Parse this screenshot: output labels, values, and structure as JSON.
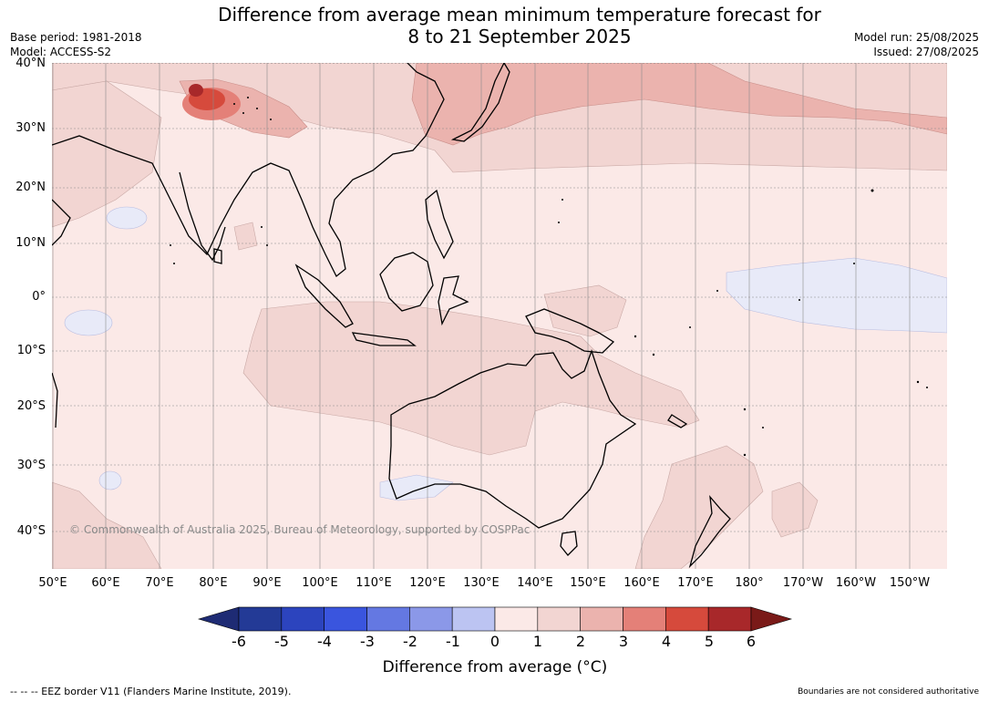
{
  "title": {
    "line1": "Difference from average mean minimum temperature forecast for",
    "line2": "8 to 21 September 2025"
  },
  "meta_left": {
    "base_period": "Base period: 1981-2018",
    "model": "Model: ACCESS-S2"
  },
  "meta_right": {
    "model_run": "Model run: 25/08/2025",
    "issued": "Issued: 27/08/2025"
  },
  "map": {
    "lat_labels": [
      "40°N",
      "30°N",
      "20°N",
      "10°N",
      "0°",
      "10°S",
      "20°S",
      "30°S",
      "40°S"
    ],
    "lon_labels": [
      "50°E",
      "60°E",
      "70°E",
      "80°E",
      "90°E",
      "100°E",
      "110°E",
      "120°E",
      "130°E",
      "140°E",
      "150°E",
      "160°E",
      "170°E",
      "180°",
      "170°W",
      "160°W",
      "150°W"
    ],
    "copyright": "© Commonwealth of Australia 2025, Bureau of Meteorology, supported by COSPPac",
    "colors": {
      "ocean_base": "#fbe9e7",
      "anomaly_1_2": "#f2d5d2",
      "anomaly_2_3": "#ebb3ae",
      "anomaly_4_5": "#d64a3c",
      "anomaly_neg": "#e8eaf8"
    }
  },
  "colorbar": {
    "ticks": [
      "-6",
      "-5",
      "-4",
      "-3",
      "-2",
      "-1",
      "0",
      "1",
      "2",
      "3",
      "4",
      "5",
      "6"
    ],
    "colors": [
      "#233a96",
      "#2c44be",
      "#3a55de",
      "#6478e2",
      "#8b98e8",
      "#bcc4f2",
      "#e8eaf8",
      "#fbe9e7",
      "#f2d5d2",
      "#ebb3ae",
      "#e48078",
      "#d64a3c",
      "#a8282a"
    ],
    "low_end_color": "#1e2b74",
    "high_end_color": "#7a1a18",
    "label": "Difference from average (°C)"
  },
  "footer": {
    "left": "--  --  -- EEZ border V11 (Flanders Marine Institute, 2019).",
    "right": "Boundaries are not considered authoritative"
  }
}
